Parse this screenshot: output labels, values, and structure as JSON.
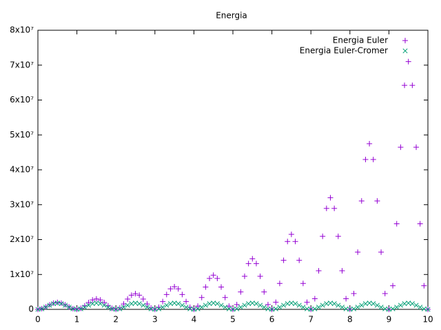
{
  "chart_data": {
    "type": "scatter",
    "title": "Energia",
    "x": [
      0,
      0.1,
      0.2,
      0.3,
      0.4,
      0.5,
      0.6,
      0.7,
      0.8,
      0.9,
      1,
      1.1,
      1.2,
      1.3,
      1.4,
      1.5,
      1.6,
      1.7,
      1.8,
      1.9,
      2,
      2.1,
      2.2,
      2.3,
      2.4,
      2.5,
      2.6,
      2.7,
      2.8,
      2.9,
      3,
      3.1,
      3.2,
      3.3,
      3.4,
      3.5,
      3.6,
      3.7,
      3.8,
      3.9,
      4,
      4.1,
      4.2,
      4.3,
      4.4,
      4.5,
      4.6,
      4.7,
      4.8,
      4.9,
      5,
      5.1,
      5.2,
      5.3,
      5.4,
      5.5,
      5.6,
      5.7,
      5.8,
      5.9,
      6,
      6.1,
      6.2,
      6.3,
      6.4,
      6.5,
      6.6,
      6.7,
      6.8,
      6.9,
      7,
      7.1,
      7.2,
      7.3,
      7.4,
      7.5,
      7.6,
      7.7,
      7.8,
      7.9,
      8,
      8.1,
      8.2,
      8.3,
      8.4,
      8.5,
      8.6,
      8.7,
      8.8,
      8.9,
      9,
      9.1,
      9.2,
      9.3,
      9.4,
      9.5,
      9.6,
      9.7,
      9.8,
      9.9,
      10
    ],
    "series": [
      {
        "name": "Energia Euler",
        "color": "#9400d3",
        "marker": "plus",
        "values": [
          0,
          190000,
          690000,
          1310000,
          1810000,
          2000000,
          1810000,
          1310000,
          690000,
          190000,
          0,
          290000,
          1040000,
          1960000,
          2710000,
          3000000,
          2710000,
          1960000,
          1040000,
          290000,
          0,
          430000,
          1550000,
          2950000,
          4070000,
          4500000,
          4070000,
          2950000,
          1550000,
          430000,
          0,
          620000,
          2250000,
          4250000,
          5880000,
          6500000,
          5880000,
          4250000,
          2250000,
          620000,
          0,
          940000,
          3390000,
          6410000,
          8860000,
          9800000,
          8860000,
          6410000,
          3390000,
          940000,
          0,
          1380000,
          5010000,
          9490000,
          13120000,
          14500000,
          13120000,
          9490000,
          5010000,
          1380000,
          0,
          2050000,
          7430000,
          14070000,
          19450000,
          21500000,
          19450000,
          14070000,
          7430000,
          2050000,
          0,
          3060000,
          11060000,
          20940000,
          28940000,
          32000000,
          28940000,
          20940000,
          11060000,
          3060000,
          0,
          4540000,
          16410000,
          31090000,
          42960000,
          47500000,
          42960000,
          31090000,
          16410000,
          4540000,
          0,
          6780000,
          24530000,
          46470000,
          64220000,
          71000000,
          64220000,
          46470000,
          24530000,
          6780000,
          0
        ]
      },
      {
        "name": "Energia Euler-Cromer",
        "color": "#009e73",
        "marker": "cross",
        "values": [
          0,
          170000,
          620000,
          1180000,
          1630000,
          1800000,
          1630000,
          1180000,
          620000,
          170000,
          0,
          170000,
          620000,
          1180000,
          1630000,
          1800000,
          1630000,
          1180000,
          620000,
          170000,
          0,
          170000,
          620000,
          1180000,
          1630000,
          1800000,
          1630000,
          1180000,
          620000,
          170000,
          0,
          170000,
          620000,
          1180000,
          1630000,
          1800000,
          1630000,
          1180000,
          620000,
          170000,
          0,
          170000,
          620000,
          1180000,
          1630000,
          1800000,
          1630000,
          1180000,
          620000,
          170000,
          0,
          170000,
          620000,
          1180000,
          1630000,
          1800000,
          1630000,
          1180000,
          620000,
          170000,
          0,
          170000,
          620000,
          1180000,
          1630000,
          1800000,
          1630000,
          1180000,
          620000,
          170000,
          0,
          170000,
          620000,
          1180000,
          1630000,
          1800000,
          1630000,
          1180000,
          620000,
          170000,
          0,
          170000,
          620000,
          1180000,
          1630000,
          1800000,
          1630000,
          1180000,
          620000,
          170000,
          0,
          170000,
          620000,
          1180000,
          1630000,
          1800000,
          1630000,
          1180000,
          620000,
          170000,
          0
        ]
      }
    ],
    "xlim": [
      0,
      10
    ],
    "xticks": [
      0,
      1,
      2,
      3,
      4,
      5,
      6,
      7,
      8,
      9,
      10
    ],
    "ylim": [
      0,
      80000000
    ],
    "yticks": [
      0,
      {
        "value": 10000000,
        "label": "1x10⁷"
      },
      {
        "value": 20000000,
        "label": "2x10⁷"
      },
      {
        "value": 30000000,
        "label": "3x10⁷"
      },
      {
        "value": 40000000,
        "label": "4x10⁷"
      },
      {
        "value": 50000000,
        "label": "5x10⁷"
      },
      {
        "value": 60000000,
        "label": "6x10⁷"
      },
      {
        "value": 70000000,
        "label": "7x10⁷"
      },
      {
        "value": 80000000,
        "label": "8x10⁷"
      }
    ],
    "grid": false,
    "legend": "top-right"
  }
}
